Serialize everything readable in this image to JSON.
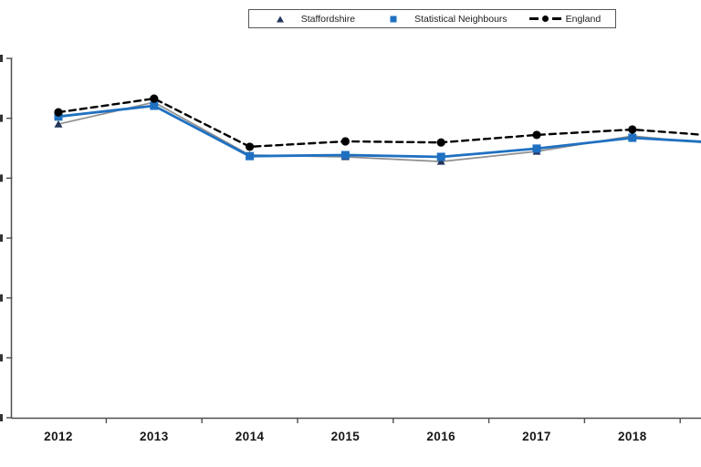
{
  "legend": {
    "items": [
      {
        "label": "Staffordshire"
      },
      {
        "label": "Statistical Neighbours"
      },
      {
        "label": "England"
      }
    ]
  },
  "chart_data": {
    "type": "line",
    "title": "",
    "categories": [
      "2012",
      "2013",
      "2014",
      "2015",
      "2016",
      "2017",
      "2018"
    ],
    "x_axis": {
      "tick_labels": [
        "2012",
        "2013",
        "2014",
        "2015",
        "2016",
        "2017",
        "2018"
      ],
      "labels_bold": true
    },
    "y_axis": {
      "tick_count": 7,
      "tick_labels_visible": false,
      "note": "y-axis tick labels are cropped off at the left edge of the screenshot; only tiny digit fragments visible"
    },
    "grid": false,
    "legend_position": "top-center",
    "y_values_unit": "fraction of visible plot height above the x-axis (absolute scale not visible)",
    "series": [
      {
        "name": "Staffordshire",
        "color": "#8f8f8f",
        "line_style": "solid",
        "marker": "triangle",
        "marker_color": "#24355c",
        "y_rel": [
          0.817,
          0.878,
          0.731,
          0.726,
          0.713,
          0.741,
          0.784
        ],
        "edge_rel": 0.759
      },
      {
        "name": "Statistical Neighbours",
        "color": "#1f70c1",
        "line_style": "solid",
        "marker": "square",
        "marker_color": "#1f70c1",
        "y_rel": [
          0.838,
          0.868,
          0.728,
          0.731,
          0.726,
          0.749,
          0.779
        ],
        "edge_rel": 0.764
      },
      {
        "name": "England",
        "color": "#000000",
        "line_style": "dashed",
        "marker": "circle",
        "marker_color": "#000000",
        "y_rel": [
          0.85,
          0.888,
          0.754,
          0.769,
          0.766,
          0.787,
          0.802
        ],
        "edge_rel": 0.782
      }
    ]
  }
}
